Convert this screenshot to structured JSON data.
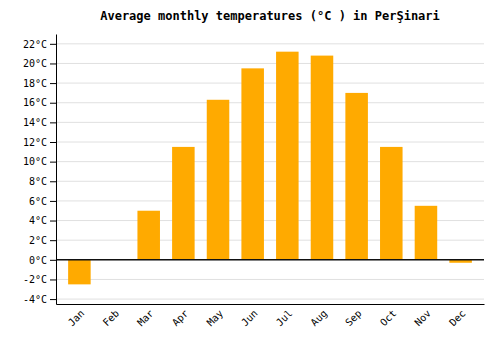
{
  "chart_data": {
    "type": "bar",
    "title": "Average monthly temperatures (°C ) in PerŞinari",
    "categories": [
      "Jan",
      "Feb",
      "Mar",
      "Apr",
      "May",
      "Jun",
      "Jul",
      "Aug",
      "Sep",
      "Oct",
      "Nov",
      "Dec"
    ],
    "values": [
      -2.5,
      0,
      5,
      11.5,
      16.3,
      19.5,
      21.2,
      20.8,
      17,
      11.5,
      5.5,
      -0.3
    ],
    "color": "#FFAA00",
    "ylim": [
      -4.5,
      23
    ],
    "yticks": [
      {
        "value": -4,
        "label": "-4°C"
      },
      {
        "value": -2,
        "label": "-2°C"
      },
      {
        "value": 0,
        "label": "0°C"
      },
      {
        "value": 2,
        "label": "2°C"
      },
      {
        "value": 4,
        "label": "4°C"
      },
      {
        "value": 6,
        "label": "6°C"
      },
      {
        "value": 8,
        "label": "8°C"
      },
      {
        "value": 10,
        "label": "10°C"
      },
      {
        "value": 12,
        "label": "12°C"
      },
      {
        "value": 14,
        "label": "14°C"
      },
      {
        "value": 16,
        "label": "16°C"
      },
      {
        "value": 18,
        "label": "18°C"
      },
      {
        "value": 20,
        "label": "20°C"
      },
      {
        "value": 22,
        "label": "22°C"
      }
    ],
    "grid": true
  }
}
